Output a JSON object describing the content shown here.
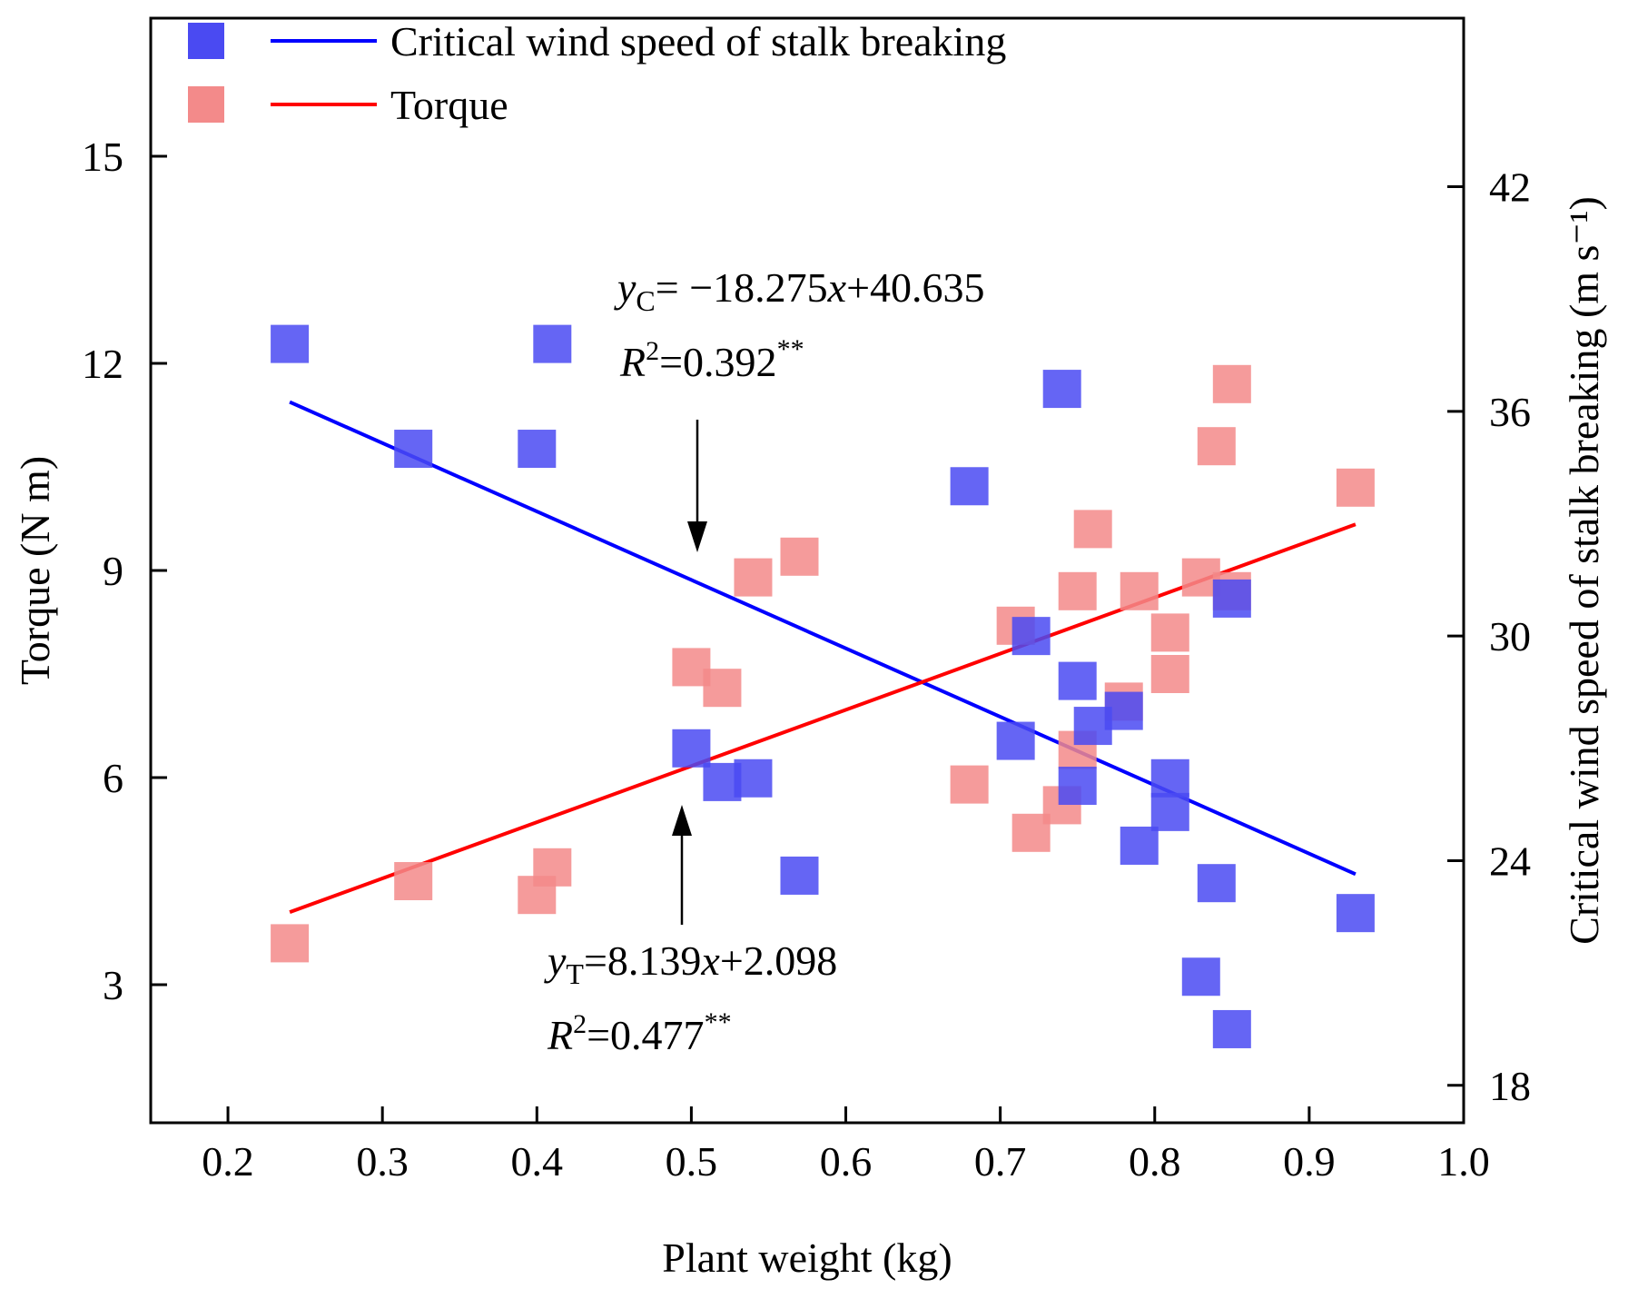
{
  "chart_data": {
    "type": "scatter",
    "xlabel": "Plant weight (kg)",
    "ylabel_left": "Torque (N m)",
    "ylabel_right": "Critical wind speed of stalk breaking (m s⁻¹)",
    "xlim": [
      0.15,
      1.0
    ],
    "ylim_left": [
      1,
      17
    ],
    "ylim_right": [
      17,
      46.5
    ],
    "xticks": [
      0.2,
      0.3,
      0.4,
      0.5,
      0.6,
      0.7,
      0.8,
      0.9,
      1.0
    ],
    "yticks_left": [
      3,
      6,
      9,
      12,
      15
    ],
    "yticks_right": [
      18,
      24,
      30,
      36,
      42
    ],
    "legend_position": "top-left",
    "series": [
      {
        "name": "Critical wind speed of stalk breaking",
        "axis": "right",
        "color": "#4a4af2",
        "fit_line_color": "#0000ff",
        "points": [
          [
            0.24,
            37.8
          ],
          [
            0.32,
            35.0
          ],
          [
            0.4,
            35.0
          ],
          [
            0.41,
            37.8
          ],
          [
            0.5,
            27.0
          ],
          [
            0.52,
            26.1
          ],
          [
            0.54,
            26.2
          ],
          [
            0.57,
            23.6
          ],
          [
            0.68,
            34.0
          ],
          [
            0.71,
            27.2
          ],
          [
            0.72,
            30.0
          ],
          [
            0.74,
            36.6
          ],
          [
            0.75,
            28.8
          ],
          [
            0.75,
            26.0
          ],
          [
            0.76,
            27.6
          ],
          [
            0.78,
            28.0
          ],
          [
            0.79,
            24.4
          ],
          [
            0.81,
            26.2
          ],
          [
            0.81,
            25.3
          ],
          [
            0.83,
            20.9
          ],
          [
            0.84,
            23.4
          ],
          [
            0.85,
            31.0
          ],
          [
            0.85,
            19.5
          ],
          [
            0.93,
            22.6
          ]
        ],
        "fit": {
          "slope": -18.275,
          "intercept": 40.635,
          "x_range": [
            0.24,
            0.93
          ]
        },
        "equation": {
          "lhs": "y",
          "sub": "C",
          "rhs": "= −18.275",
          "var": "x",
          "tail": "+40.635"
        },
        "r2": {
          "lhs": "R",
          "sup": "2",
          "rhs": "=0.392",
          "stars": "**"
        }
      },
      {
        "name": "Torque",
        "axis": "left",
        "color": "#f38a8a",
        "fit_line_color": "#ff0000",
        "points": [
          [
            0.24,
            3.6
          ],
          [
            0.32,
            4.5
          ],
          [
            0.4,
            4.3
          ],
          [
            0.41,
            4.7
          ],
          [
            0.5,
            7.6
          ],
          [
            0.52,
            7.3
          ],
          [
            0.54,
            8.9
          ],
          [
            0.57,
            9.2
          ],
          [
            0.68,
            5.9
          ],
          [
            0.71,
            8.2
          ],
          [
            0.72,
            5.2
          ],
          [
            0.74,
            5.6
          ],
          [
            0.75,
            6.4
          ],
          [
            0.75,
            8.7
          ],
          [
            0.76,
            9.6
          ],
          [
            0.78,
            7.1
          ],
          [
            0.79,
            8.7
          ],
          [
            0.81,
            8.1
          ],
          [
            0.81,
            7.5
          ],
          [
            0.83,
            8.9
          ],
          [
            0.84,
            10.8
          ],
          [
            0.85,
            11.7
          ],
          [
            0.85,
            8.7
          ],
          [
            0.93,
            10.2
          ]
        ],
        "fit": {
          "slope": 8.139,
          "intercept": 2.098,
          "x_range": [
            0.24,
            0.93
          ]
        },
        "equation": {
          "lhs": "y",
          "sub": "T",
          "rhs": "=8.139",
          "var": "x",
          "tail": "+2.098"
        },
        "r2": {
          "lhs": "R",
          "sup": "2",
          "rhs": "=0.477",
          "stars": "**"
        }
      }
    ]
  }
}
